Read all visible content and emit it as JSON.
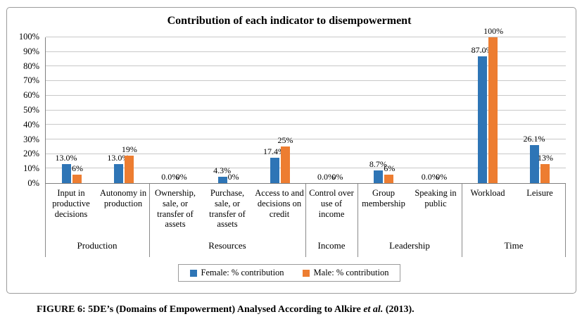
{
  "figure": {
    "caption_prefix": "FIGURE 6: 5DE’s (Domains of Empowerment) Analysed According to Alkire ",
    "caption_italic": "et al.",
    "caption_suffix": " (2013)."
  },
  "chart_data": {
    "type": "bar",
    "title": "Contribution of each indicator to disempowerment",
    "categories": [
      "Input in productive decisions",
      "Autonomy in production",
      "Ownership, sale, or transfer of assets",
      "Purchase, sale, or transfer of assets",
      "Access to and decisions on credit",
      "Control over use of income",
      "Group membership",
      "Speaking in public",
      "Workload",
      "Leisure"
    ],
    "groups": [
      {
        "label": "Production",
        "span": 2
      },
      {
        "label": "Resources",
        "span": 3
      },
      {
        "label": "Income",
        "span": 1
      },
      {
        "label": "Leadership",
        "span": 2
      },
      {
        "label": "Time",
        "span": 2
      }
    ],
    "series": [
      {
        "name": "Female: % contribution",
        "color": "#2E75B6",
        "values": [
          13.0,
          13.0,
          0.0,
          4.3,
          17.4,
          0.0,
          8.7,
          0.0,
          87.0,
          26.1
        ],
        "labels": [
          "13.0%",
          "13.0%",
          "0.0%",
          "4.3%",
          "17.4%",
          "0.0%",
          "8.7%",
          "0.0%",
          "87.0%",
          "26.1%"
        ]
      },
      {
        "name": "Male: % contribution",
        "color": "#ED7D31",
        "values": [
          6,
          19,
          0,
          0,
          25,
          0,
          6,
          0,
          100,
          13
        ],
        "labels": [
          "6%",
          "19%",
          "0%",
          "0%",
          "25%",
          "0%",
          "6%",
          "0%",
          "100%",
          "13%"
        ]
      }
    ],
    "ylim": [
      0,
      100
    ],
    "ytick_step": 10,
    "ytick_labels": [
      "0%",
      "10%",
      "20%",
      "30%",
      "40%",
      "50%",
      "60%",
      "70%",
      "80%",
      "90%",
      "100%"
    ],
    "grid": true,
    "legend_position": "bottom"
  }
}
